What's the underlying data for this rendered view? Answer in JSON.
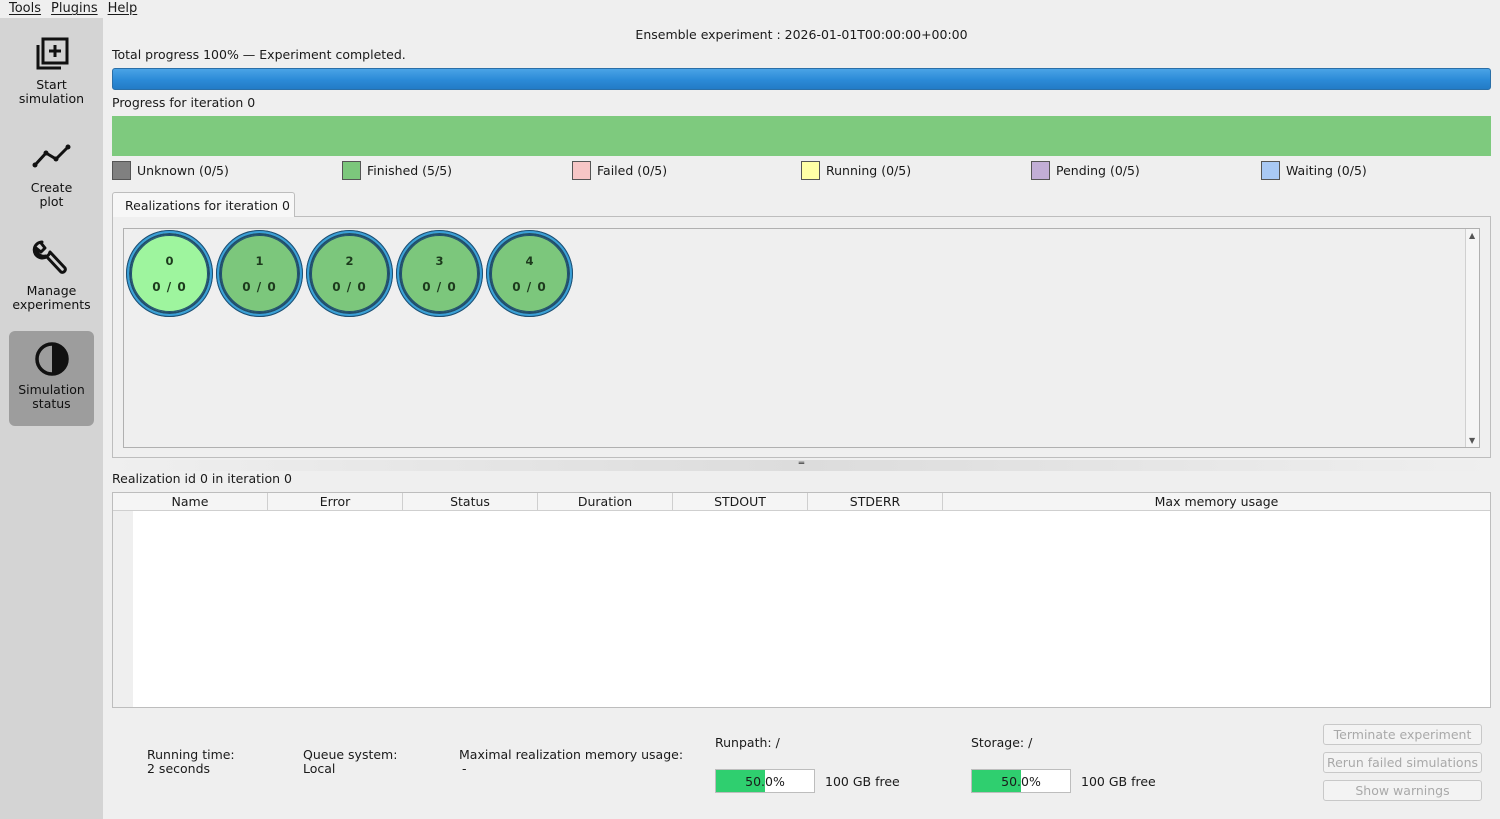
{
  "menu": [
    "Tools",
    "Plugins",
    "Help"
  ],
  "sidebar": {
    "items": [
      {
        "label_line1": "Start",
        "label_line2": "simulation",
        "icon": "add-box-icon",
        "active": false
      },
      {
        "label_line1": "Create",
        "label_line2": "plot",
        "icon": "line-chart-icon",
        "active": false
      },
      {
        "label_line1": "Manage",
        "label_line2": "experiments",
        "icon": "wrench-icon",
        "active": false
      },
      {
        "label_line1": "Simulation",
        "label_line2": "status",
        "icon": "contrast-icon",
        "active": true
      }
    ]
  },
  "header": {
    "title": "Ensemble experiment : 2026-01-01T00:00:00+00:00",
    "total_progress_label": "Total progress 100% — Experiment completed.",
    "total_progress": 1.0,
    "iteration_progress_label": "Progress for iteration 0"
  },
  "legend": [
    {
      "label": "Unknown (0/5)",
      "color": "#808080"
    },
    {
      "label": "Finished (5/5)",
      "color": "#7cc77c"
    },
    {
      "label": "Failed (0/5)",
      "color": "#f7c6c6"
    },
    {
      "label": "Running (0/5)",
      "color": "#ffffa6"
    },
    {
      "label": "Pending (0/5)",
      "color": "#c2aed6"
    },
    {
      "label": "Waiting (0/5)",
      "color": "#a9c9f5"
    }
  ],
  "tab": {
    "label": "Realizations for iteration 0"
  },
  "realizations": [
    {
      "id": "0",
      "count": "0 / 0",
      "selected": true
    },
    {
      "id": "1",
      "count": "0 / 0",
      "selected": false
    },
    {
      "id": "2",
      "count": "0 / 0",
      "selected": false
    },
    {
      "id": "3",
      "count": "0 / 0",
      "selected": false
    },
    {
      "id": "4",
      "count": "0 / 0",
      "selected": false
    }
  ],
  "detail": {
    "title": "Realization id 0 in iteration 0",
    "columns": [
      "Name",
      "Error",
      "Status",
      "Duration",
      "STDOUT",
      "STDERR",
      "Max memory usage"
    ]
  },
  "footer": {
    "running_time_label": "Running time:",
    "running_time_value": "2 seconds",
    "queue_label": "Queue system:",
    "queue_value": "Local",
    "memory_label": "Maximal realization memory usage:",
    "memory_value": "-",
    "runpath_label": "Runpath: /",
    "runpath_usage": "50.0%",
    "runpath_usage_fraction": 0.5,
    "runpath_free": "100 GB free",
    "storage_label": "Storage: /",
    "storage_usage": "50.0%",
    "storage_usage_fraction": 0.5,
    "storage_free": "100 GB free"
  },
  "actions": {
    "terminate": "Terminate experiment",
    "rerun": "Rerun failed simulations",
    "warnings": "Show warnings"
  }
}
